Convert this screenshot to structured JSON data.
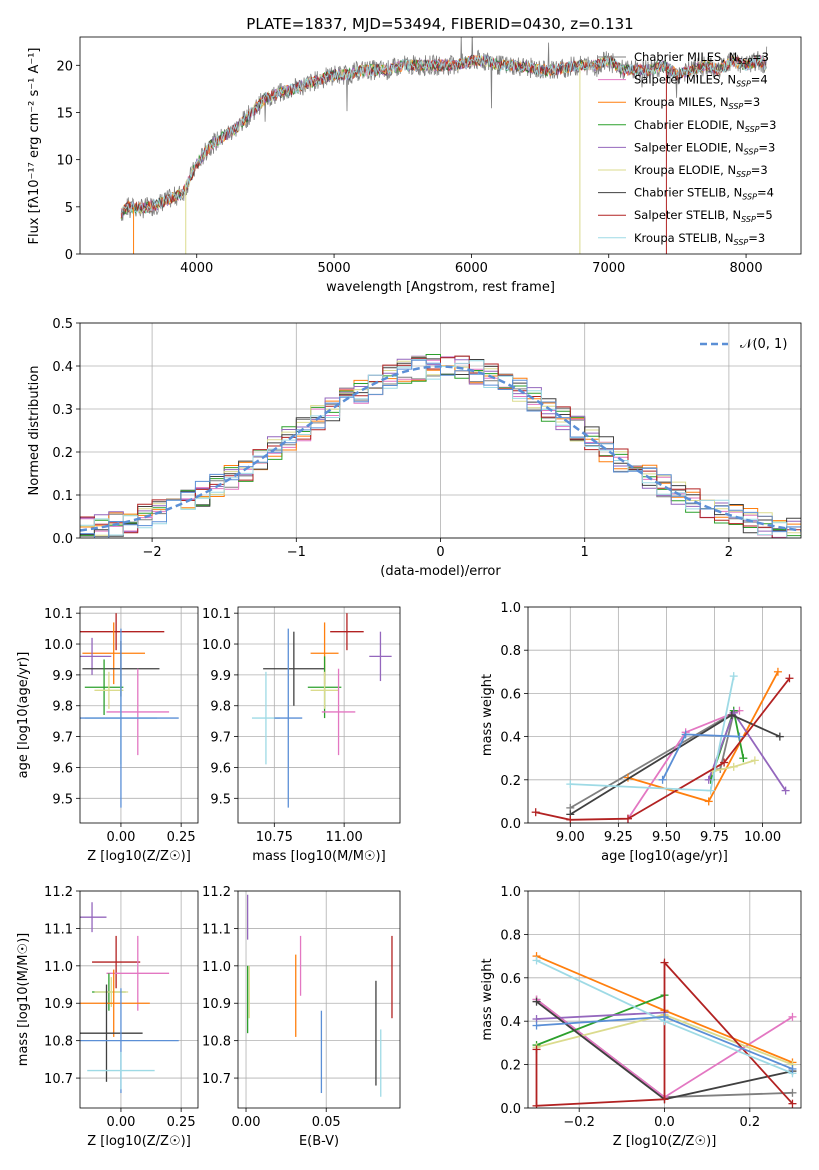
{
  "title": "PLATE=1837, MJD=53494, FIBERID=0430, z=0.131",
  "colors": {
    "Chabrier MILES": "#7f7f7f",
    "Salpeter MILES": "#e377c2",
    "Kroupa MILES": "#ff7f0e",
    "Chabrier ELODIE": "#2ca02c",
    "Salpeter ELODIE": "#9467bd",
    "Kroupa ELODIE": "#dbdb8d",
    "Chabrier STELIB": "#404040",
    "Salpeter STELIB": "#b22222",
    "Kroupa STELIB": "#9edae5",
    "data": "#7f7f7f",
    "normal": "#5b8fd6"
  },
  "chart_data": [
    {
      "id": "spectrum",
      "type": "line",
      "xlabel": "wavelength [Angstrom, rest frame]",
      "ylabel": "Flux [f_λ10^-17 erg cm^-2 s^-1 A^-1]",
      "xlim": [
        3150,
        8400
      ],
      "ylim": [
        0,
        23
      ],
      "xticks": [
        4000,
        5000,
        6000,
        7000,
        8000
      ],
      "yticks": [
        0,
        5,
        10,
        15,
        20
      ],
      "grid": false,
      "legend_position": "right",
      "spectrum_x": [
        3450,
        3500,
        3600,
        3700,
        3800,
        3900,
        4000,
        4100,
        4200,
        4300,
        4400,
        4500,
        4600,
        4700,
        4800,
        4900,
        5000,
        5100,
        5200,
        5300,
        5400,
        5500,
        5600,
        5700,
        5800,
        5900,
        6000,
        6100,
        6200,
        6300,
        6400,
        6500,
        6600,
        6700,
        6800,
        6900,
        7000,
        7100,
        7200,
        7300,
        7400,
        7500,
        7600,
        7700,
        7800,
        7900,
        8000,
        8100,
        8150
      ],
      "spectrum_y": [
        4.3,
        5.0,
        4.8,
        5.2,
        5.8,
        6.5,
        9.5,
        11.5,
        12.5,
        13.5,
        15.0,
        16.5,
        17.0,
        17.5,
        18.0,
        18.5,
        19.0,
        19.0,
        19.5,
        19.5,
        19.5,
        20.0,
        20.0,
        20.0,
        20.0,
        20.0,
        20.5,
        20.5,
        20.0,
        20.0,
        19.8,
        19.5,
        19.5,
        19.8,
        20.0,
        20.0,
        20.5,
        19.5,
        19.5,
        19.5,
        20.0,
        19.0,
        19.5,
        20.0,
        19.5,
        20.5,
        20.0,
        20.5,
        20.0
      ],
      "series": [
        {
          "name": "Chabrier MILES, N_SSP=3",
          "label_main": "Chabrier MILES, N",
          "label_sub": "SSP",
          "label_tail": "=3",
          "color": "#7f7f7f"
        },
        {
          "name": "Salpeter MILES, N_SSP=4",
          "label_main": "Salpeter MILES, N",
          "label_sub": "SSP",
          "label_tail": "=4",
          "color": "#e377c2"
        },
        {
          "name": "Kroupa MILES, N_SSP=3",
          "label_main": "Kroupa MILES, N",
          "label_sub": "SSP",
          "label_tail": "=3",
          "color": "#ff7f0e"
        },
        {
          "name": "Chabrier ELODIE, N_SSP=3",
          "label_main": "Chabrier ELODIE, N",
          "label_sub": "SSP",
          "label_tail": "=3",
          "color": "#2ca02c"
        },
        {
          "name": "Salpeter ELODIE, N_SSP=3",
          "label_main": "Salpeter ELODIE, N",
          "label_sub": "SSP",
          "label_tail": "=3",
          "color": "#9467bd"
        },
        {
          "name": "Kroupa ELODIE, N_SSP=3",
          "label_main": "Kroupa ELODIE, N",
          "label_sub": "SSP",
          "label_tail": "=3",
          "color": "#dbdb8d"
        },
        {
          "name": "Chabrier STELIB, N_SSP=4",
          "label_main": "Chabrier STELIB, N",
          "label_sub": "SSP",
          "label_tail": "=4",
          "color": "#404040"
        },
        {
          "name": "Salpeter STELIB, N_SSP=5",
          "label_main": "Salpeter STELIB, N",
          "label_sub": "SSP",
          "label_tail": "=5",
          "color": "#b22222"
        },
        {
          "name": "Kroupa STELIB, N_SSP=3",
          "label_main": "Kroupa STELIB, N",
          "label_sub": "SSP",
          "label_tail": "=3",
          "color": "#9edae5"
        }
      ]
    },
    {
      "id": "residuals",
      "type": "line",
      "xlabel": "(data-model)/error",
      "ylabel": "Normed distribution",
      "xlim": [
        -2.5,
        2.5
      ],
      "ylim": [
        0,
        0.5
      ],
      "xticks": [
        -2,
        -1,
        0,
        1,
        2
      ],
      "yticks": [
        0.0,
        0.1,
        0.2,
        0.3,
        0.4,
        0.5
      ],
      "grid": true,
      "legend_position": "top-right",
      "legend_label": "𝒩(0, 1)",
      "bin_width": 0.1,
      "normal_curve": {
        "mean": 0,
        "sigma": 1
      },
      "histogram_colors": [
        "#7f7f7f",
        "#e377c2",
        "#ff7f0e",
        "#2ca02c",
        "#9467bd",
        "#dbdb8d",
        "#404040",
        "#b22222",
        "#9edae5",
        "#5b8fd6"
      ]
    },
    {
      "id": "age_vs_Z",
      "type": "scatter",
      "xlabel": "Z [log10(Z/Z☉)]",
      "ylabel": "age [log10(age/yr)]",
      "xlim": [
        -0.17,
        0.32
      ],
      "ylim": [
        9.42,
        10.12
      ],
      "xticks": [
        0.0,
        0.25
      ],
      "yticks": [
        9.5,
        9.6,
        9.7,
        9.8,
        9.9,
        10.0,
        10.1
      ],
      "grid": true,
      "points": [
        {
          "x": -0.02,
          "y": 10.04,
          "xerr": 0.2,
          "yerr": 0.06,
          "color": "#b22222"
        },
        {
          "x": -0.03,
          "y": 9.97,
          "xerr": 0.13,
          "yerr": 0.1,
          "color": "#ff7f0e"
        },
        {
          "x": -0.12,
          "y": 9.96,
          "xerr": 0.08,
          "yerr": 0.06,
          "color": "#9467bd"
        },
        {
          "x": 0.0,
          "y": 9.92,
          "xerr": 0.16,
          "yerr": 0.09,
          "color": "#404040"
        },
        {
          "x": -0.07,
          "y": 9.86,
          "xerr": 0.08,
          "yerr": 0.09,
          "color": "#2ca02c"
        },
        {
          "x": -0.05,
          "y": 9.85,
          "xerr": 0.06,
          "yerr": 0.06,
          "color": "#dbdb8d"
        },
        {
          "x": 0.07,
          "y": 9.78,
          "xerr": 0.13,
          "yerr": 0.14,
          "color": "#e377c2"
        },
        {
          "x": 0.0,
          "y": 9.76,
          "xerr": 0.15,
          "yerr": 0.15,
          "color": "#9edae5"
        },
        {
          "x": 0.0,
          "y": 9.76,
          "xerr": 0.24,
          "yerr": 0.29,
          "color": "#5b8fd6"
        }
      ]
    },
    {
      "id": "age_vs_mass",
      "type": "scatter",
      "xlabel": "mass [log10(M/M☉)]",
      "ylabel": "",
      "xlim": [
        10.62,
        11.2
      ],
      "ylim": [
        9.42,
        10.12
      ],
      "xticks": [
        10.75,
        11.0
      ],
      "yticks": [
        9.5,
        9.6,
        9.7,
        9.8,
        9.9,
        10.0,
        10.1
      ],
      "grid": true,
      "points": [
        {
          "x": 11.01,
          "y": 10.04,
          "xerr": 0.06,
          "yerr": 0.06,
          "color": "#b22222"
        },
        {
          "x": 10.93,
          "y": 9.97,
          "xerr": 0.05,
          "yerr": 0.1,
          "color": "#ff7f0e"
        },
        {
          "x": 11.13,
          "y": 9.96,
          "xerr": 0.04,
          "yerr": 0.08,
          "color": "#9467bd"
        },
        {
          "x": 10.82,
          "y": 9.92,
          "xerr": 0.11,
          "yerr": 0.12,
          "color": "#404040"
        },
        {
          "x": 10.93,
          "y": 9.86,
          "xerr": 0.06,
          "yerr": 0.1,
          "color": "#2ca02c"
        },
        {
          "x": 10.93,
          "y": 9.85,
          "xerr": 0.05,
          "yerr": 0.06,
          "color": "#dbdb8d"
        },
        {
          "x": 10.98,
          "y": 9.78,
          "xerr": 0.06,
          "yerr": 0.14,
          "color": "#e377c2"
        },
        {
          "x": 10.72,
          "y": 9.76,
          "xerr": 0.05,
          "yerr": 0.15,
          "color": "#9edae5"
        },
        {
          "x": 10.8,
          "y": 9.76,
          "xerr": 0.05,
          "yerr": 0.29,
          "color": "#5b8fd6"
        }
      ]
    },
    {
      "id": "weight_vs_age",
      "type": "line",
      "xlabel": "age [log10(age/yr)]",
      "ylabel": "mass weight",
      "xlim": [
        8.78,
        10.2
      ],
      "ylim": [
        0,
        1
      ],
      "xticks": [
        9.0,
        9.25,
        9.5,
        9.75,
        10.0
      ],
      "yticks": [
        0.0,
        0.2,
        0.4,
        0.6,
        0.8,
        1.0
      ],
      "grid": true,
      "series": [
        {
          "color": "#7f7f7f",
          "points": [
            [
              9.0,
              0.07
            ],
            [
              9.85,
              0.51
            ],
            [
              9.78,
              0.25
            ]
          ]
        },
        {
          "color": "#e377c2",
          "points": [
            [
              9.3,
              0.02
            ],
            [
              9.6,
              0.42
            ],
            [
              9.88,
              0.52
            ]
          ]
        },
        {
          "color": "#ff7f0e",
          "points": [
            [
              9.3,
              0.21
            ],
            [
              9.72,
              0.1
            ],
            [
              10.08,
              0.7
            ]
          ]
        },
        {
          "color": "#2ca02c",
          "points": [
            [
              9.73,
              0.2
            ],
            [
              9.85,
              0.52
            ],
            [
              9.9,
              0.3
            ]
          ]
        },
        {
          "color": "#9467bd",
          "points": [
            [
              9.72,
              0.2
            ],
            [
              9.85,
              0.51
            ],
            [
              10.12,
              0.15
            ]
          ]
        },
        {
          "color": "#dbdb8d",
          "points": [
            [
              9.74,
              0.24
            ],
            [
              9.85,
              0.26
            ],
            [
              9.96,
              0.29
            ]
          ]
        },
        {
          "color": "#404040",
          "points": [
            [
              9.0,
              0.04
            ],
            [
              9.84,
              0.5
            ],
            [
              10.09,
              0.4
            ]
          ]
        },
        {
          "color": "#b22222",
          "points": [
            [
              8.82,
              0.05
            ],
            [
              9.0,
              0.015
            ],
            [
              9.3,
              0.02
            ],
            [
              9.8,
              0.28
            ],
            [
              10.14,
              0.67
            ]
          ]
        },
        {
          "color": "#9edae5",
          "points": [
            [
              9.0,
              0.18
            ],
            [
              9.73,
              0.15
            ],
            [
              9.85,
              0.68
            ]
          ]
        },
        {
          "color": "#5b8fd6",
          "points": [
            [
              9.48,
              0.2
            ],
            [
              9.6,
              0.41
            ],
            [
              9.88,
              0.4
            ]
          ]
        }
      ]
    },
    {
      "id": "mass_vs_Z",
      "type": "scatter",
      "xlabel": "Z [log10(Z/Z☉)]",
      "ylabel": "mass [log10(M/M☉)]",
      "xlim": [
        -0.17,
        0.32
      ],
      "ylim": [
        10.62,
        11.2
      ],
      "xticks": [
        0.0,
        0.25
      ],
      "yticks": [
        10.7,
        10.8,
        10.9,
        11.0,
        11.1,
        11.2
      ],
      "grid": true,
      "points": [
        {
          "x": -0.12,
          "y": 11.13,
          "xerr": 0.06,
          "yerr": 0.04,
          "color": "#9467bd"
        },
        {
          "x": -0.02,
          "y": 11.01,
          "xerr": 0.1,
          "yerr": 0.07,
          "color": "#b22222"
        },
        {
          "x": 0.07,
          "y": 10.98,
          "xerr": 0.13,
          "yerr": 0.1,
          "color": "#e377c2"
        },
        {
          "x": -0.05,
          "y": 10.93,
          "xerr": 0.07,
          "yerr": 0.05,
          "color": "#2ca02c"
        },
        {
          "x": -0.04,
          "y": 10.93,
          "xerr": 0.07,
          "yerr": 0.04,
          "color": "#dbdb8d"
        },
        {
          "x": -0.03,
          "y": 10.9,
          "xerr": 0.15,
          "yerr": 0.09,
          "color": "#ff7f0e"
        },
        {
          "x": -0.06,
          "y": 10.82,
          "xerr": 0.15,
          "yerr": 0.13,
          "color": "#404040"
        },
        {
          "x": 0.0,
          "y": 10.8,
          "xerr": 0.24,
          "yerr": 0.14,
          "color": "#5b8fd6"
        },
        {
          "x": 0.0,
          "y": 10.72,
          "xerr": 0.14,
          "yerr": 0.05,
          "color": "#9edae5"
        }
      ]
    },
    {
      "id": "mass_vs_ebv",
      "type": "scatter",
      "xlabel": "E(B-V)",
      "ylabel": "",
      "xlim": [
        -0.005,
        0.096
      ],
      "ylim": [
        10.62,
        11.2
      ],
      "xticks": [
        0.0,
        0.05
      ],
      "yticks": [
        10.7,
        10.8,
        10.9,
        11.0,
        11.1,
        11.2
      ],
      "grid": true,
      "points": [
        {
          "x": 0.001,
          "y": 11.13,
          "xerr": 0,
          "yerr": 0.06,
          "color": "#9467bd"
        },
        {
          "x": 0.001,
          "y": 10.91,
          "xerr": 0,
          "yerr": 0.09,
          "color": "#2ca02c"
        },
        {
          "x": 0.002,
          "y": 10.93,
          "xerr": 0,
          "yerr": 0.07,
          "color": "#dbdb8d"
        },
        {
          "x": 0.031,
          "y": 10.92,
          "xerr": 0,
          "yerr": 0.11,
          "color": "#ff7f0e"
        },
        {
          "x": 0.034,
          "y": 11.0,
          "xerr": 0,
          "yerr": 0.08,
          "color": "#e377c2"
        },
        {
          "x": 0.047,
          "y": 10.77,
          "xerr": 0,
          "yerr": 0.11,
          "color": "#5b8fd6"
        },
        {
          "x": 0.081,
          "y": 10.82,
          "xerr": 0,
          "yerr": 0.14,
          "color": "#404040"
        },
        {
          "x": 0.084,
          "y": 10.74,
          "xerr": 0,
          "yerr": 0.09,
          "color": "#9edae5"
        },
        {
          "x": 0.091,
          "y": 10.97,
          "xerr": 0,
          "yerr": 0.11,
          "color": "#b22222"
        }
      ]
    },
    {
      "id": "weight_vs_Z",
      "type": "line",
      "xlabel": "Z [log10(Z/Z☉)]",
      "ylabel": "mass weight",
      "xlim": [
        -0.32,
        0.32
      ],
      "ylim": [
        0,
        1
      ],
      "xticks": [
        -0.2,
        0.0,
        0.2
      ],
      "yticks": [
        0.0,
        0.2,
        0.4,
        0.6,
        0.8,
        1.0
      ],
      "grid": true,
      "series": [
        {
          "color": "#7f7f7f",
          "points": [
            [
              -0.3,
              0.5
            ],
            [
              0.0,
              0.05
            ],
            [
              0.3,
              0.07
            ]
          ]
        },
        {
          "color": "#e377c2",
          "points": [
            [
              -0.3,
              0.5
            ],
            [
              0.0,
              0.05
            ],
            [
              0.3,
              0.42
            ]
          ]
        },
        {
          "color": "#ff7f0e",
          "points": [
            [
              -0.3,
              0.7
            ],
            [
              0.0,
              0.45
            ],
            [
              0.3,
              0.21
            ]
          ]
        },
        {
          "color": "#2ca02c",
          "points": [
            [
              -0.3,
              0.29
            ],
            [
              0.0,
              0.52
            ]
          ]
        },
        {
          "color": "#9467bd",
          "points": [
            [
              -0.3,
              0.41
            ],
            [
              0.0,
              0.44
            ]
          ]
        },
        {
          "color": "#dbdb8d",
          "points": [
            [
              -0.3,
              0.28
            ],
            [
              0.0,
              0.43
            ],
            [
              0.3,
              0.2
            ]
          ]
        },
        {
          "color": "#404040",
          "points": [
            [
              -0.3,
              0.49
            ],
            [
              0.0,
              0.04
            ],
            [
              0.3,
              0.17
            ]
          ]
        },
        {
          "color": "#b22222",
          "points": [
            [
              -0.3,
              0.27
            ],
            [
              -0.3,
              0.01
            ],
            [
              0.0,
              0.04
            ],
            [
              0.0,
              0.67
            ],
            [
              0.3,
              0.02
            ]
          ]
        },
        {
          "color": "#9edae5",
          "points": [
            [
              -0.3,
              0.68
            ],
            [
              0.0,
              0.4
            ],
            [
              0.3,
              0.16
            ]
          ]
        },
        {
          "color": "#5b8fd6",
          "points": [
            [
              -0.3,
              0.38
            ],
            [
              0.0,
              0.42
            ],
            [
              0.3,
              0.18
            ]
          ]
        }
      ]
    }
  ]
}
